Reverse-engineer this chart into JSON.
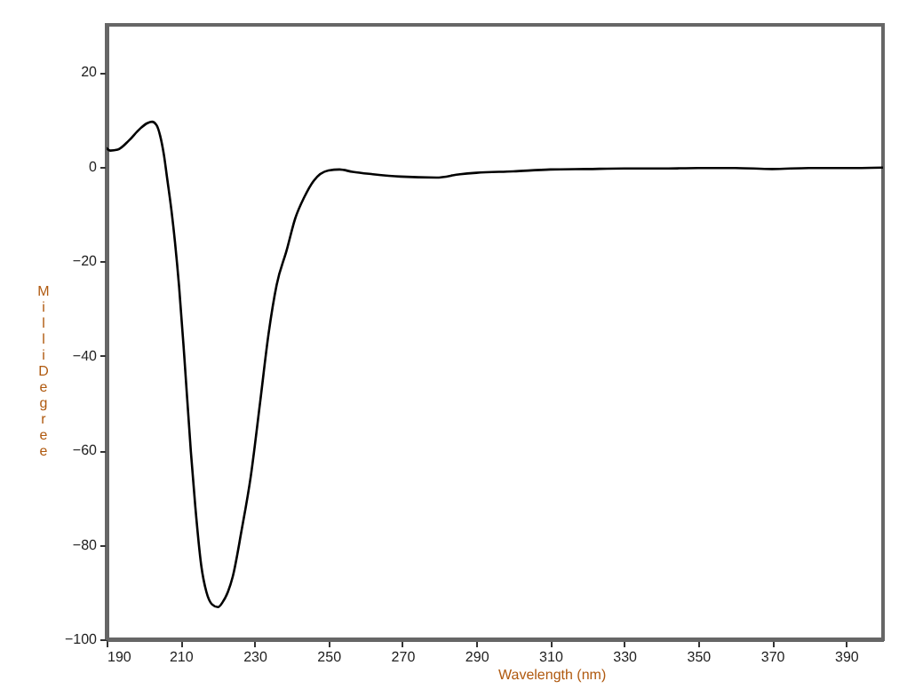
{
  "chart_data": {
    "type": "line",
    "xlabel": "Wavelength (nm)",
    "ylabel": "Milli Degree",
    "xlim": [
      190,
      400
    ],
    "ylim": [
      -100,
      30
    ],
    "xticks": [
      190,
      210,
      230,
      250,
      270,
      290,
      310,
      330,
      350,
      370,
      390
    ],
    "yticks": [
      -100,
      -80,
      -60,
      -40,
      -20,
      0,
      20
    ],
    "grid": false,
    "marker": "none",
    "line_style": "solid",
    "series": [
      {
        "color": "#000000",
        "x": [
          190,
          191,
          193,
          196,
          199,
          201,
          202.3,
          203.5,
          204.5,
          205.5,
          206.4,
          207.5,
          208.5,
          209.6,
          211,
          212.8,
          214,
          215.6,
          217,
          218.5,
          220.1,
          221.5,
          222.8,
          224.1,
          226.5,
          229,
          231.5,
          233.8,
          236,
          238.7,
          241,
          243.5,
          246,
          250,
          253,
          256.5,
          262,
          269.5,
          279.2,
          285.6,
          290,
          300,
          310,
          320,
          330,
          340,
          350,
          360,
          370,
          380,
          390,
          400
        ],
        "values": [
          3.9,
          3.4,
          3.6,
          5.5,
          8,
          9.2,
          9.5,
          8.8,
          6.5,
          2.5,
          -2.6,
          -9,
          -16,
          -25.3,
          -40,
          -60.4,
          -72,
          -84.4,
          -90,
          -92.6,
          -93.2,
          -92,
          -90,
          -86.8,
          -77,
          -65.5,
          -50,
          -35.4,
          -25,
          -17.7,
          -11,
          -6.4,
          -3,
          -0.8,
          -0.6,
          -1.1,
          -1.6,
          -2.1,
          -2.3,
          -1.6,
          -1.3,
          -1,
          -0.6,
          -0.5,
          -0.4,
          -0.4,
          -0.3,
          -0.3,
          -0.5,
          -0.3,
          -0.3,
          -0.2
        ]
      }
    ]
  }
}
